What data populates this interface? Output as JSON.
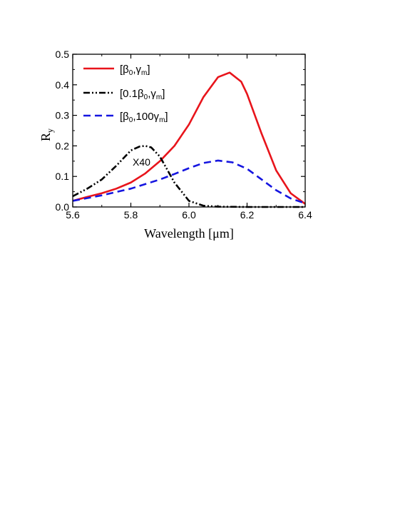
{
  "chart_data": {
    "type": "line",
    "xlabel": "Wavelength [μm]",
    "ylabel": "R",
    "ylabel_sub": "y",
    "xlim": [
      5.6,
      6.4
    ],
    "ylim": [
      0,
      0.5
    ],
    "x_ticks": [
      "5.6",
      "5.8",
      "6.0",
      "6.2",
      "6.4"
    ],
    "y_ticks": [
      "0.0",
      "0.1",
      "0.2",
      "0.3",
      "0.4",
      "0.5"
    ],
    "grid": false,
    "legend_position": "top-left",
    "annotation": "X40",
    "series": [
      {
        "name": "[β0,γm]",
        "legend_parts": [
          [
            "[β",
            ""
          ],
          [
            "0",
            "sub"
          ],
          [
            ",γ",
            ""
          ],
          [
            "m",
            "sub"
          ],
          [
            "]",
            ""
          ]
        ],
        "color": "#e8141b",
        "dash": "solid",
        "x": [
          5.6,
          5.65,
          5.7,
          5.75,
          5.8,
          5.85,
          5.9,
          5.95,
          6.0,
          6.05,
          6.1,
          6.14,
          6.18,
          6.2,
          6.25,
          6.3,
          6.35,
          6.4
        ],
        "y": [
          0.02,
          0.033,
          0.045,
          0.06,
          0.08,
          0.11,
          0.15,
          0.2,
          0.27,
          0.36,
          0.425,
          0.44,
          0.41,
          0.37,
          0.24,
          0.12,
          0.045,
          0.01
        ]
      },
      {
        "name": "[0.1β0,γm]",
        "legend_parts": [
          [
            "[0.1β",
            ""
          ],
          [
            "0",
            "sub"
          ],
          [
            ",γ",
            ""
          ],
          [
            "m",
            "sub"
          ],
          [
            "]",
            ""
          ]
        ],
        "color": "#000000",
        "dash": "dashdotdot",
        "x": [
          5.6,
          5.65,
          5.7,
          5.75,
          5.8,
          5.83,
          5.85,
          5.87,
          5.9,
          5.95,
          6.0,
          6.05,
          6.1,
          6.2,
          6.3,
          6.4
        ],
        "y": [
          0.035,
          0.06,
          0.09,
          0.135,
          0.185,
          0.198,
          0.2,
          0.195,
          0.165,
          0.08,
          0.02,
          0.004,
          0.001,
          0.0,
          0.0,
          0.0
        ]
      },
      {
        "name": "[β0,100γm]",
        "legend_parts": [
          [
            "[β",
            ""
          ],
          [
            "0",
            "sub"
          ],
          [
            ",100γ",
            ""
          ],
          [
            "m",
            "sub"
          ],
          [
            "]",
            ""
          ]
        ],
        "color": "#1515e0",
        "dash": "dashed",
        "x": [
          5.6,
          5.7,
          5.8,
          5.9,
          5.95,
          6.0,
          6.05,
          6.1,
          6.15,
          6.2,
          6.25,
          6.3,
          6.35,
          6.4
        ],
        "y": [
          0.02,
          0.038,
          0.06,
          0.09,
          0.108,
          0.127,
          0.144,
          0.152,
          0.146,
          0.125,
          0.09,
          0.055,
          0.028,
          0.012
        ]
      }
    ]
  }
}
